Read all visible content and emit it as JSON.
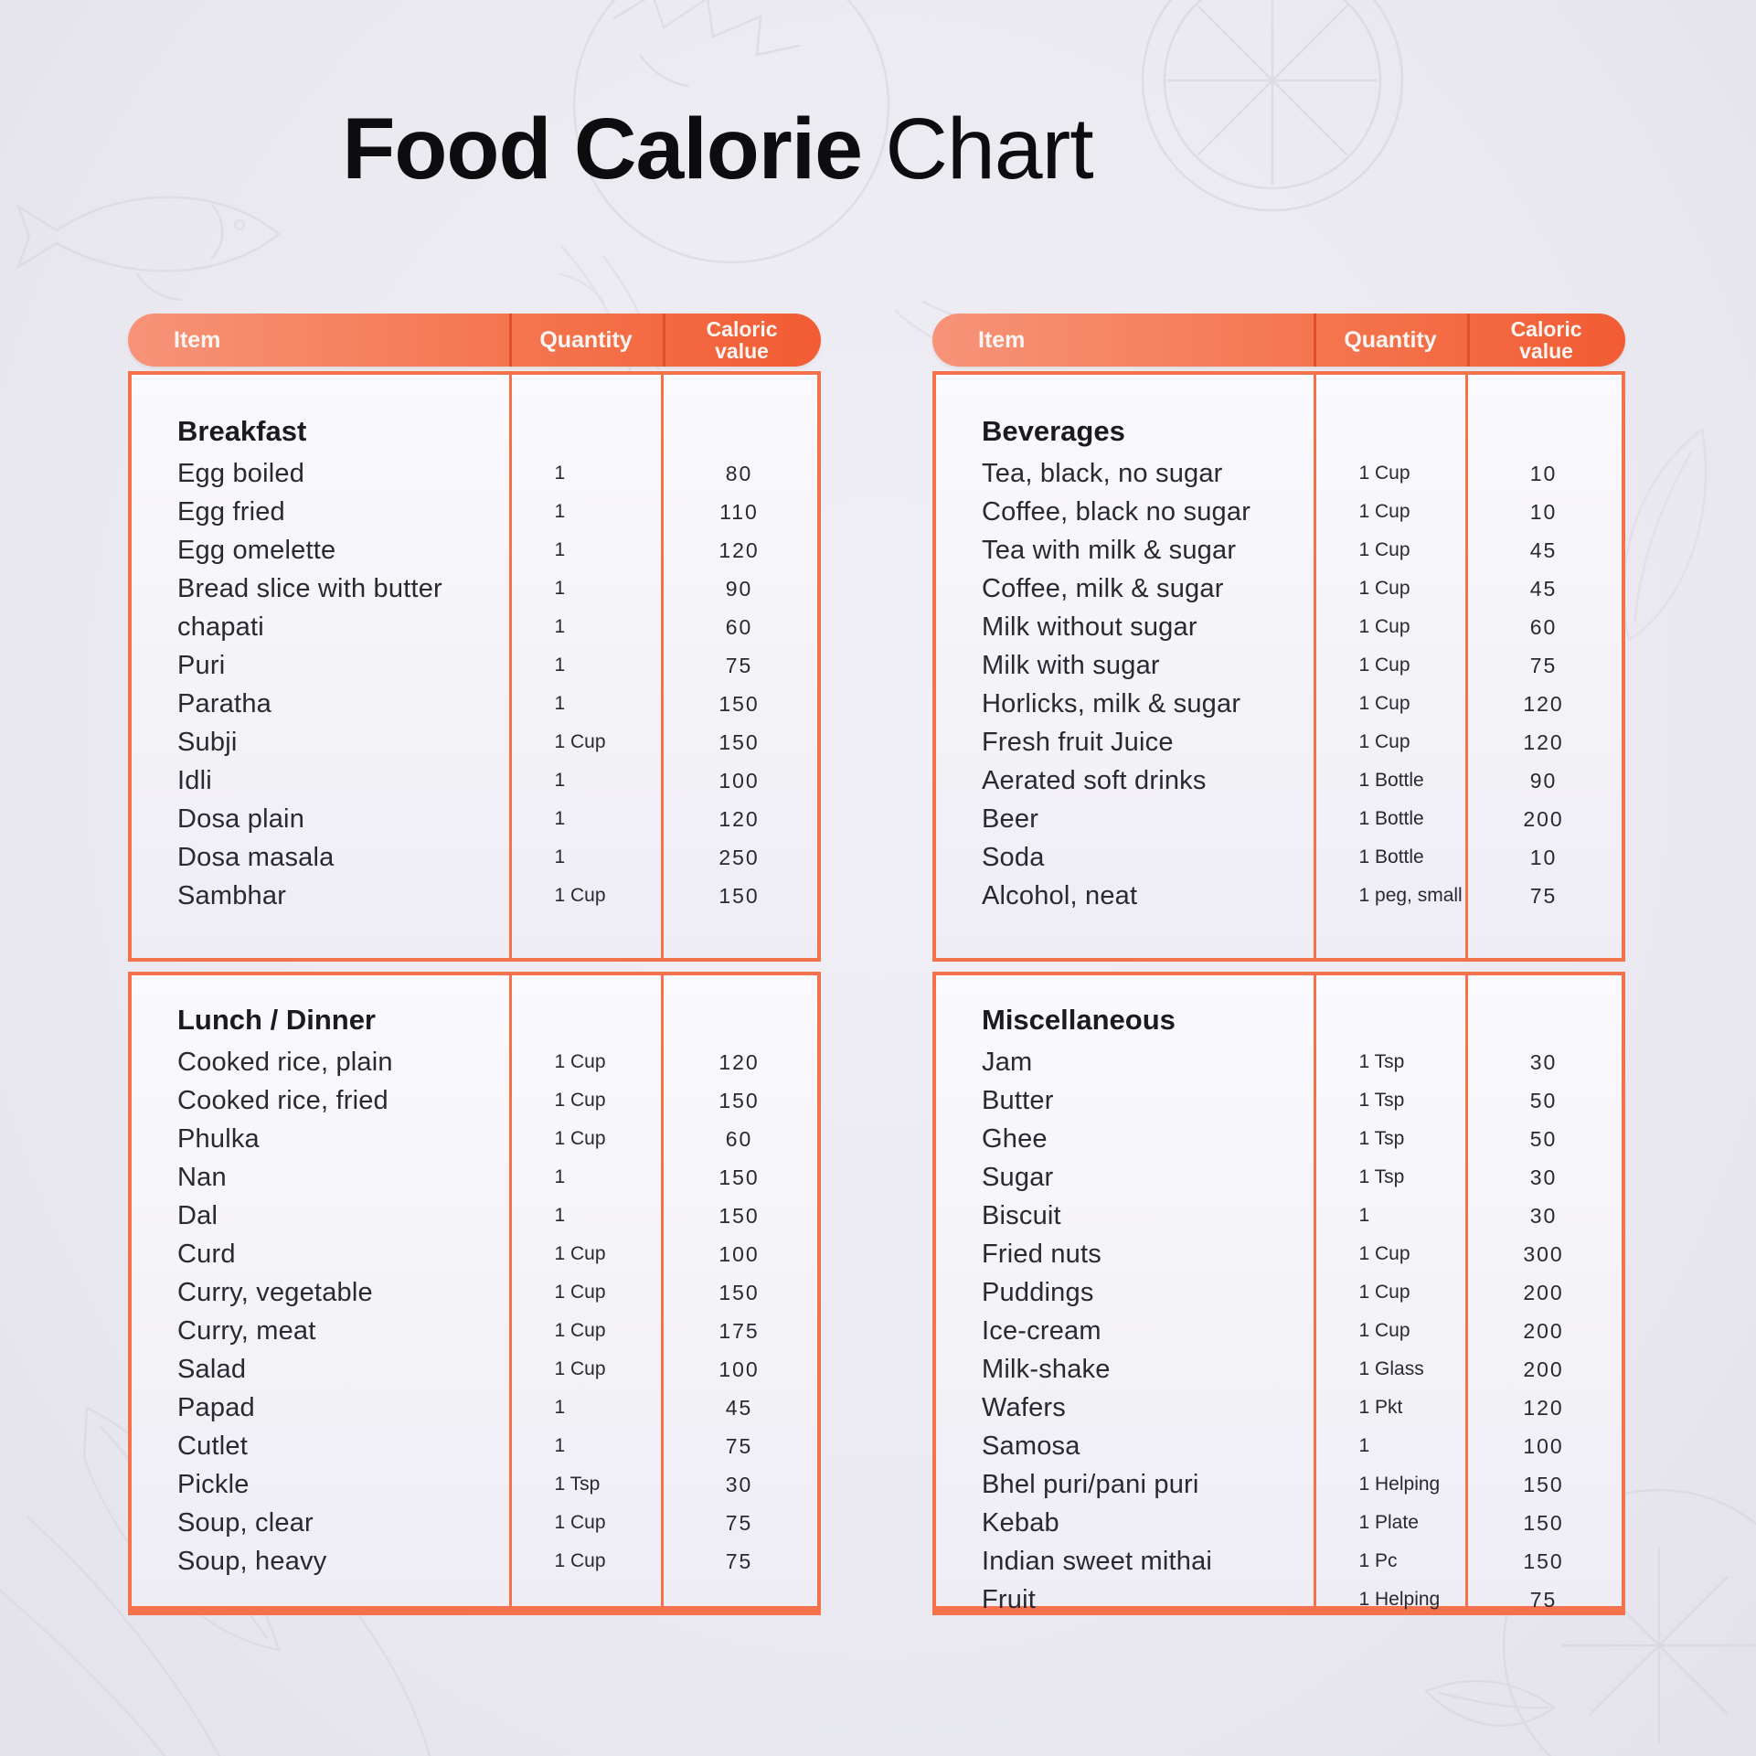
{
  "title": {
    "bold": "Food Calorie",
    "regular": " Chart"
  },
  "columns": {
    "item": "Item",
    "quantity": "Quantity",
    "caloric_line1": "Caloric",
    "caloric_line2": "value"
  },
  "theme": {
    "accent_orange": "#F3714B",
    "header_gradient_start": "#F79378",
    "header_gradient_end": "#F25C34",
    "header_divider": "#DE4F2C",
    "page_background": "#EBEAF1",
    "panel_background": "#F5F4F9",
    "text_dark": "#2A2830",
    "decoration_line": "#D7D6E2"
  },
  "chart_data": {
    "type": "table",
    "tables": [
      {
        "sections": [
          {
            "heading": "Breakfast",
            "rows": [
              [
                "Egg boiled",
                "1",
                "80"
              ],
              [
                "Egg fried",
                "1",
                "110"
              ],
              [
                "Egg omelette",
                "1",
                "120"
              ],
              [
                "Bread slice with butter",
                "1",
                "90"
              ],
              [
                "chapati",
                "1",
                "60"
              ],
              [
                "Puri",
                "1",
                "75"
              ],
              [
                "Paratha",
                "1",
                "150"
              ],
              [
                "Subji",
                "1 Cup",
                "150"
              ],
              [
                "Idli",
                "1",
                "100"
              ],
              [
                "Dosa plain",
                "1",
                "120"
              ],
              [
                "Dosa masala",
                "1",
                "250"
              ],
              [
                "Sambhar",
                "1 Cup",
                "150"
              ]
            ]
          },
          {
            "heading": "Lunch / Dinner",
            "rows": [
              [
                "Cooked rice, plain",
                "1 Cup",
                "120"
              ],
              [
                "Cooked rice, fried",
                "1 Cup",
                "150"
              ],
              [
                "Phulka",
                "1 Cup",
                "60"
              ],
              [
                "Nan",
                "1",
                "150"
              ],
              [
                "Dal",
                "1",
                "150"
              ],
              [
                "Curd",
                "1 Cup",
                "100"
              ],
              [
                "Curry, vegetable",
                "1 Cup",
                "150"
              ],
              [
                "Curry, meat",
                "1 Cup",
                "175"
              ],
              [
                "Salad",
                "1 Cup",
                "100"
              ],
              [
                "Papad",
                "1",
                "45"
              ],
              [
                "Cutlet",
                "1",
                "75"
              ],
              [
                "Pickle",
                "1 Tsp",
                "30"
              ],
              [
                "Soup, clear",
                "1 Cup",
                "75"
              ],
              [
                "Soup, heavy",
                "1 Cup",
                "75"
              ]
            ]
          }
        ]
      },
      {
        "sections": [
          {
            "heading": "Beverages",
            "rows": [
              [
                "Tea, black, no sugar",
                "1 Cup",
                "10"
              ],
              [
                "Coffee, black no sugar",
                "1 Cup",
                "10"
              ],
              [
                "Tea with milk & sugar",
                "1 Cup",
                "45"
              ],
              [
                "Coffee, milk & sugar",
                "1 Cup",
                "45"
              ],
              [
                "Milk without sugar",
                "1 Cup",
                "60"
              ],
              [
                "Milk with sugar",
                "1 Cup",
                "75"
              ],
              [
                "Horlicks, milk & sugar",
                "1 Cup",
                "120"
              ],
              [
                "Fresh fruit Juice",
                "1 Cup",
                "120"
              ],
              [
                "Aerated soft drinks",
                "1 Bottle",
                "90"
              ],
              [
                "Beer",
                "1 Bottle",
                "200"
              ],
              [
                "Soda",
                "1 Bottle",
                "10"
              ],
              [
                "Alcohol, neat",
                "1 peg, small",
                "75"
              ]
            ]
          },
          {
            "heading": "Miscellaneous",
            "rows": [
              [
                "Jam",
                "1 Tsp",
                "30"
              ],
              [
                "Butter",
                "1 Tsp",
                "50"
              ],
              [
                "Ghee",
                "1 Tsp",
                "50"
              ],
              [
                "Sugar",
                "1 Tsp",
                "30"
              ],
              [
                "Biscuit",
                "1",
                "30"
              ],
              [
                "Fried nuts",
                "1 Cup",
                "300"
              ],
              [
                "Puddings",
                "1 Cup",
                "200"
              ],
              [
                "Ice-cream",
                "1 Cup",
                "200"
              ],
              [
                "Milk-shake",
                "1 Glass",
                "200"
              ],
              [
                "Wafers",
                "1 Pkt",
                "120"
              ],
              [
                "Samosa",
                "1",
                "100"
              ],
              [
                "Bhel puri/pani puri",
                "1 Helping",
                "150"
              ],
              [
                "Kebab",
                "1 Plate",
                "150"
              ],
              [
                "Indian sweet mithai",
                "1 Pc",
                "150"
              ],
              [
                "Fruit",
                "1 Helping",
                "75"
              ]
            ]
          }
        ]
      }
    ]
  }
}
